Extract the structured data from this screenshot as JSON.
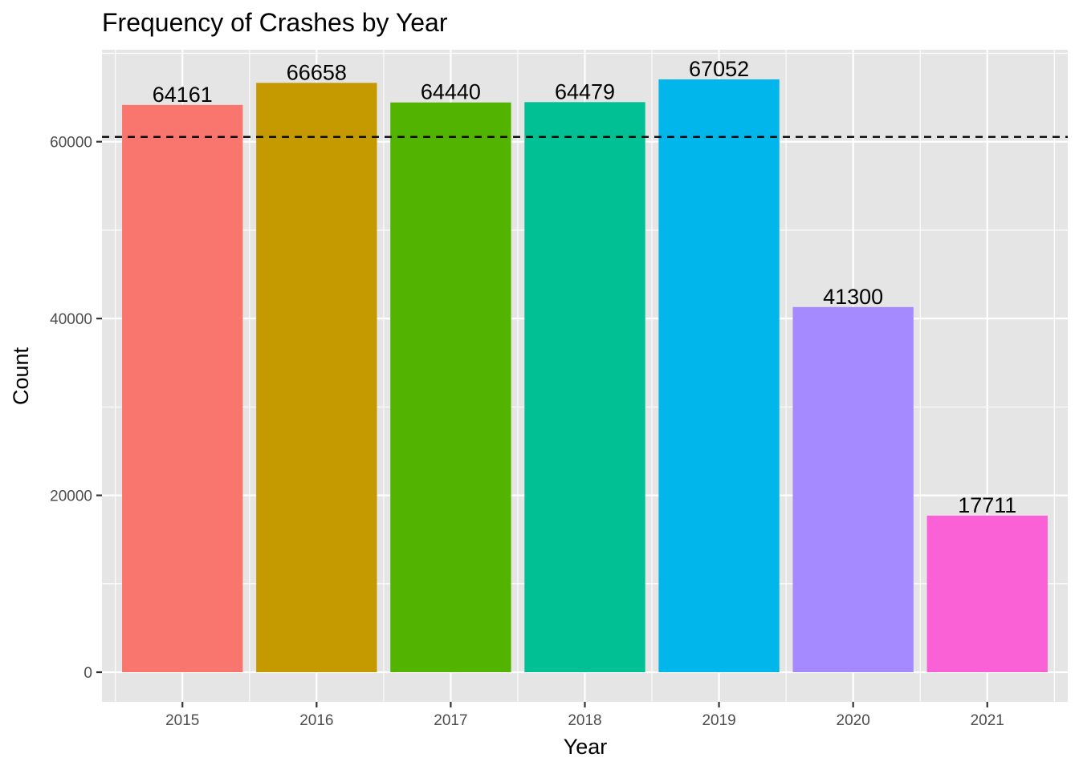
{
  "chart_data": {
    "type": "bar",
    "title": "Frequency of Crashes by Year",
    "xlabel": "Year",
    "ylabel": "Count",
    "categories": [
      "2015",
      "2016",
      "2017",
      "2018",
      "2019",
      "2020",
      "2021"
    ],
    "values": [
      64161,
      66658,
      64440,
      64479,
      67052,
      41300,
      17711
    ],
    "data_labels": [
      "64161",
      "66658",
      "64440",
      "64479",
      "67052",
      "41300",
      "17711"
    ],
    "bar_colors": [
      "#F8766D",
      "#C49A00",
      "#53B400",
      "#00C094",
      "#00B6EB",
      "#A58AFF",
      "#FB61D7"
    ],
    "y_ticks": [
      0,
      20000,
      40000,
      60000
    ],
    "y_tick_labels": [
      "0",
      "20000",
      "40000",
      "60000"
    ],
    "ylim": [
      -3353,
      70405
    ],
    "reference_line": {
      "value": 60543,
      "style": "dashed",
      "color": "#000000"
    },
    "grid": true,
    "panel_background": "#E5E5E5",
    "grid_color": "#FFFFFF",
    "legend": "none"
  }
}
